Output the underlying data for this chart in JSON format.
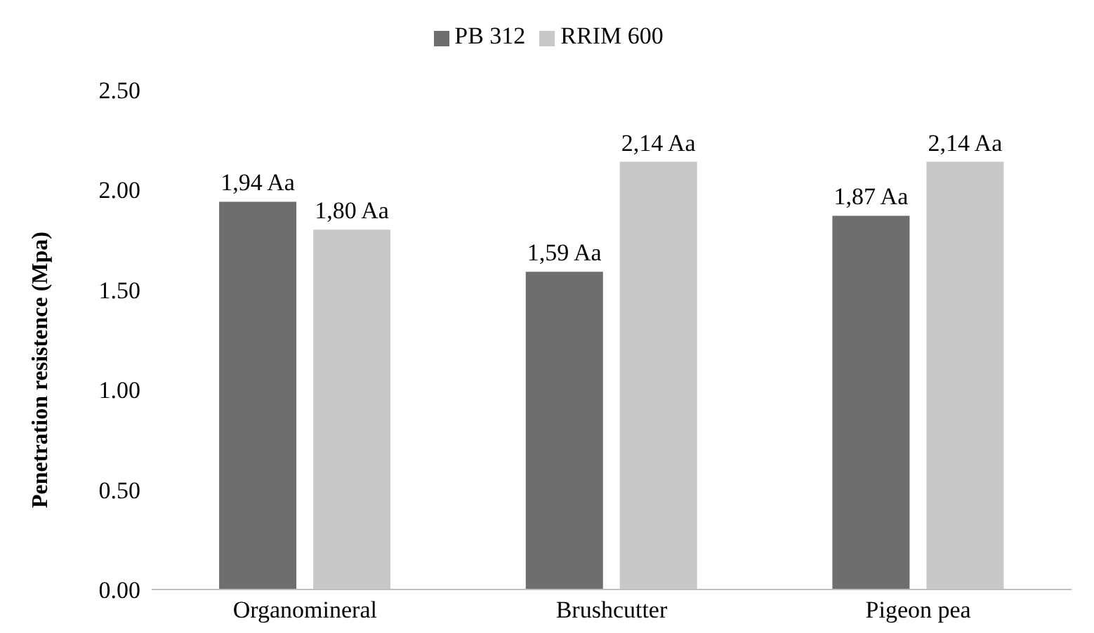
{
  "chart_data": {
    "type": "bar",
    "ylabel": "Penetration resistence (Mpa)",
    "categories": [
      "Organomineral",
      "Brushcutter",
      "Pigeon pea"
    ],
    "series": [
      {
        "name": "PB 312",
        "color": "#6e6e6e",
        "values": [
          1.94,
          1.59,
          1.87
        ],
        "value_labels": [
          "1,94 Aa",
          "1,59 Aa",
          "1,87 Aa"
        ]
      },
      {
        "name": "RRIM 600",
        "color": "#c8c8c8",
        "values": [
          1.8,
          2.14,
          2.14
        ],
        "value_labels": [
          "1,80 Aa",
          "2,14 Aa",
          "2,14 Aa"
        ]
      }
    ],
    "ylim": [
      0,
      2.5
    ],
    "yticks": [
      {
        "value": 0,
        "label": "0.00"
      },
      {
        "value": 0.5,
        "label": "0.50"
      },
      {
        "value": 1,
        "label": "1.00"
      },
      {
        "value": 1.5,
        "label": "1.50"
      },
      {
        "value": 2,
        "label": "2.00"
      },
      {
        "value": 2.5,
        "label": "2.50"
      }
    ],
    "grid": false,
    "legend": "top"
  }
}
